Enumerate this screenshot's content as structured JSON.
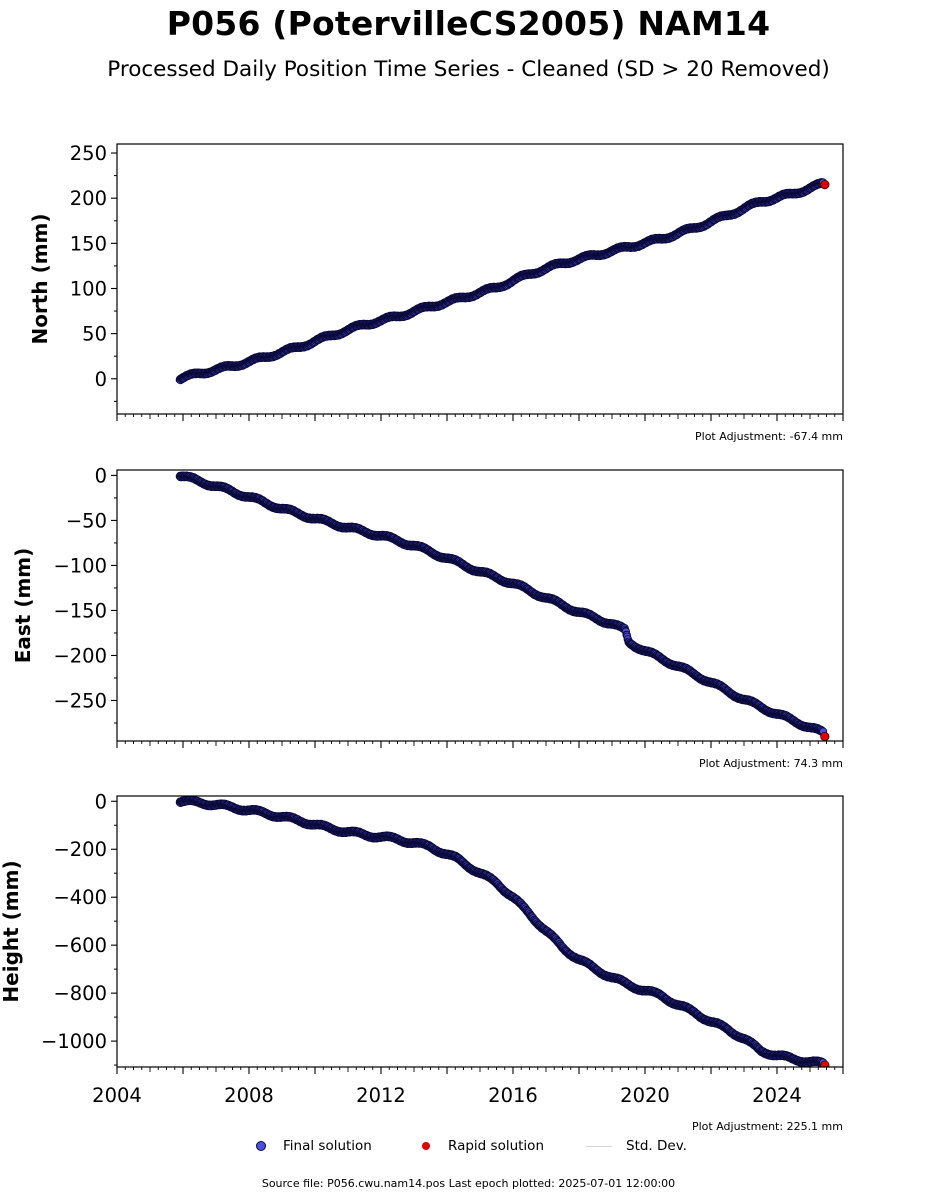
{
  "title": "P056 (PotervilleCS2005) NAM14",
  "subtitle": "Processed Daily Position Time Series - Cleaned (SD > 20 Removed)",
  "chart_data": [
    {
      "type": "scatter",
      "ylabel": "North (mm)",
      "xlim": [
        2004.0,
        2026.0
      ],
      "ylim": [
        -39,
        260
      ],
      "yticks": [
        0,
        50,
        100,
        150,
        200,
        250
      ],
      "adjustment_label": "Plot Adjustment: -67.4 mm",
      "x_tick_labels_shown": false,
      "series": [
        {
          "name": "Final solution",
          "x": [
            2005.9,
            2006.5,
            2007.5,
            2008.5,
            2009.5,
            2010.5,
            2011.5,
            2012.5,
            2013.5,
            2014.5,
            2015.5,
            2016.5,
            2017.5,
            2018.5,
            2019.5,
            2020.5,
            2021.5,
            2022.5,
            2023.5,
            2024.5,
            2025.4
          ],
          "y": [
            0,
            6,
            14,
            24,
            35,
            48,
            60,
            69,
            80,
            90,
            101,
            116,
            128,
            137,
            146,
            155,
            167,
            181,
            196,
            205,
            216
          ]
        },
        {
          "name": "Rapid solution",
          "x": [
            2025.45
          ],
          "y": [
            215
          ]
        }
      ]
    },
    {
      "type": "scatter",
      "ylabel": "East (mm)",
      "xlim": [
        2004.0,
        2026.0
      ],
      "ylim": [
        -295,
        6
      ],
      "yticks": [
        0,
        -50,
        -100,
        -150,
        -200,
        -250
      ],
      "adjustment_label": "Plot Adjustment: 74.3 mm",
      "x_tick_labels_shown": false,
      "series": [
        {
          "name": "Final solution",
          "x": [
            2005.9,
            2007.0,
            2008.0,
            2009.0,
            2010.0,
            2011.0,
            2012.0,
            2013.0,
            2014.0,
            2015.0,
            2016.0,
            2017.0,
            2018.0,
            2019.0,
            2019.4,
            2019.5,
            2020.0,
            2021.0,
            2022.0,
            2023.0,
            2024.0,
            2025.4
          ],
          "y": [
            0,
            -12,
            -24,
            -37,
            -48,
            -58,
            -67,
            -78,
            -92,
            -107,
            -120,
            -136,
            -152,
            -165,
            -172,
            -185,
            -195,
            -212,
            -230,
            -249,
            -265,
            -286
          ]
        },
        {
          "name": "Rapid solution",
          "x": [
            2025.45
          ],
          "y": [
            -290
          ]
        }
      ]
    },
    {
      "type": "scatter",
      "ylabel": "Height (mm)",
      "xlim": [
        2004.0,
        2026.0
      ],
      "ylim": [
        -1108,
        22
      ],
      "yticks": [
        0,
        -200,
        -400,
        -600,
        -800,
        -1000
      ],
      "adjustment_label": "Plot Adjustment: 225.1 mm",
      "x_ticks": [
        2004,
        2008,
        2012,
        2016,
        2020,
        2024
      ],
      "x_tick_labels_shown": true,
      "series": [
        {
          "name": "Final solution",
          "x": [
            2005.9,
            2006.5,
            2007.5,
            2008.5,
            2009.5,
            2010.5,
            2011.5,
            2012.5,
            2013.5,
            2014.3,
            2015.0,
            2015.5,
            2016.0,
            2016.5,
            2017.0,
            2017.5,
            2018.0,
            2018.5,
            2019.0,
            2019.5,
            2020.0,
            2020.5,
            2021.0,
            2021.5,
            2022.0,
            2022.5,
            2023.0,
            2023.5,
            2024.0,
            2024.5,
            2025.4
          ],
          "y": [
            0,
            -5,
            -25,
            -50,
            -80,
            -115,
            -140,
            -158,
            -190,
            -240,
            -300,
            -340,
            -400,
            -470,
            -540,
            -610,
            -660,
            -700,
            -735,
            -765,
            -790,
            -810,
            -850,
            -880,
            -920,
            -950,
            -990,
            -1040,
            -1060,
            -1075,
            -1095
          ]
        },
        {
          "name": "Rapid solution",
          "x": [
            2025.45
          ],
          "y": [
            -1100
          ]
        }
      ]
    }
  ],
  "legend": {
    "final": "Final solution",
    "rapid": "Rapid solution",
    "std": "Std. Dev."
  },
  "colors": {
    "final_fill": "#4d4de0",
    "final_edge": "#0a0a3a",
    "rapid_fill": "#e00000",
    "std_line": "#d3d3d3"
  },
  "footer": "Source file: P056.cwu.nam14.pos  Last epoch plotted: 2025-07-01 12:00:00"
}
